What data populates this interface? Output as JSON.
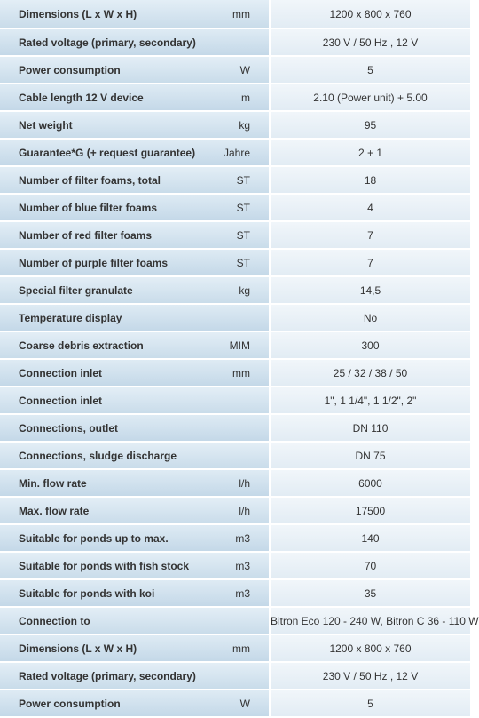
{
  "specs": [
    {
      "label": "Dimensions (L x W x H)",
      "unit": "mm",
      "value": "1200 x 800 x 760"
    },
    {
      "label": "Rated voltage (primary, secondary)",
      "unit": "",
      "value": "230 V / 50 Hz , 12 V"
    },
    {
      "label": "Power consumption",
      "unit": "W",
      "value": "5"
    },
    {
      "label": "Cable length 12 V device",
      "unit": "m",
      "value": "2.10 (Power unit) + 5.00"
    },
    {
      "label": "Net weight",
      "unit": "kg",
      "value": "95"
    },
    {
      "label": "Guarantee*G (+ request guarantee)",
      "unit": "Jahre",
      "value": "2 + 1"
    },
    {
      "label": "Number of filter foams, total",
      "unit": "ST",
      "value": "18"
    },
    {
      "label": "Number of blue filter foams",
      "unit": "ST",
      "value": "4"
    },
    {
      "label": "Number of red filter foams",
      "unit": "ST",
      "value": "7"
    },
    {
      "label": "Number of purple filter foams",
      "unit": "ST",
      "value": "7"
    },
    {
      "label": "Special filter granulate",
      "unit": "kg",
      "value": "14,5"
    },
    {
      "label": "Temperature display",
      "unit": "",
      "value": "No"
    },
    {
      "label": "Coarse debris extraction",
      "unit": "MIM",
      "value": "300"
    },
    {
      "label": "Connection inlet",
      "unit": "mm",
      "value": "25 / 32 / 38 / 50"
    },
    {
      "label": "Connection inlet",
      "unit": "",
      "value": "1\", 1 1/4\", 1 1/2\", 2\""
    },
    {
      "label": "Connections, outlet",
      "unit": "",
      "value": "DN 110"
    },
    {
      "label": "Connections, sludge discharge",
      "unit": "",
      "value": "DN 75"
    },
    {
      "label": "Min. flow rate",
      "unit": "l/h",
      "value": "6000"
    },
    {
      "label": "Max. flow rate",
      "unit": "l/h",
      "value": "17500"
    },
    {
      "label": "Suitable for ponds up to max.",
      "unit": "m3",
      "value": "140"
    },
    {
      "label": "Suitable for ponds with fish stock",
      "unit": "m3",
      "value": "70"
    },
    {
      "label": "Suitable for ponds with koi",
      "unit": "m3",
      "value": "35"
    },
    {
      "label": "Connection to",
      "unit": "",
      "value": "Bitron Eco 120 - 240 W, Bitron C 36 - 110 W"
    },
    {
      "label": "Dimensions (L x W x H)",
      "unit": "mm",
      "value": "1200 x 800 x 760"
    },
    {
      "label": "Rated voltage (primary, secondary)",
      "unit": "",
      "value": "230 V / 50 Hz , 12 V"
    },
    {
      "label": "Power consumption",
      "unit": "W",
      "value": "5"
    }
  ]
}
